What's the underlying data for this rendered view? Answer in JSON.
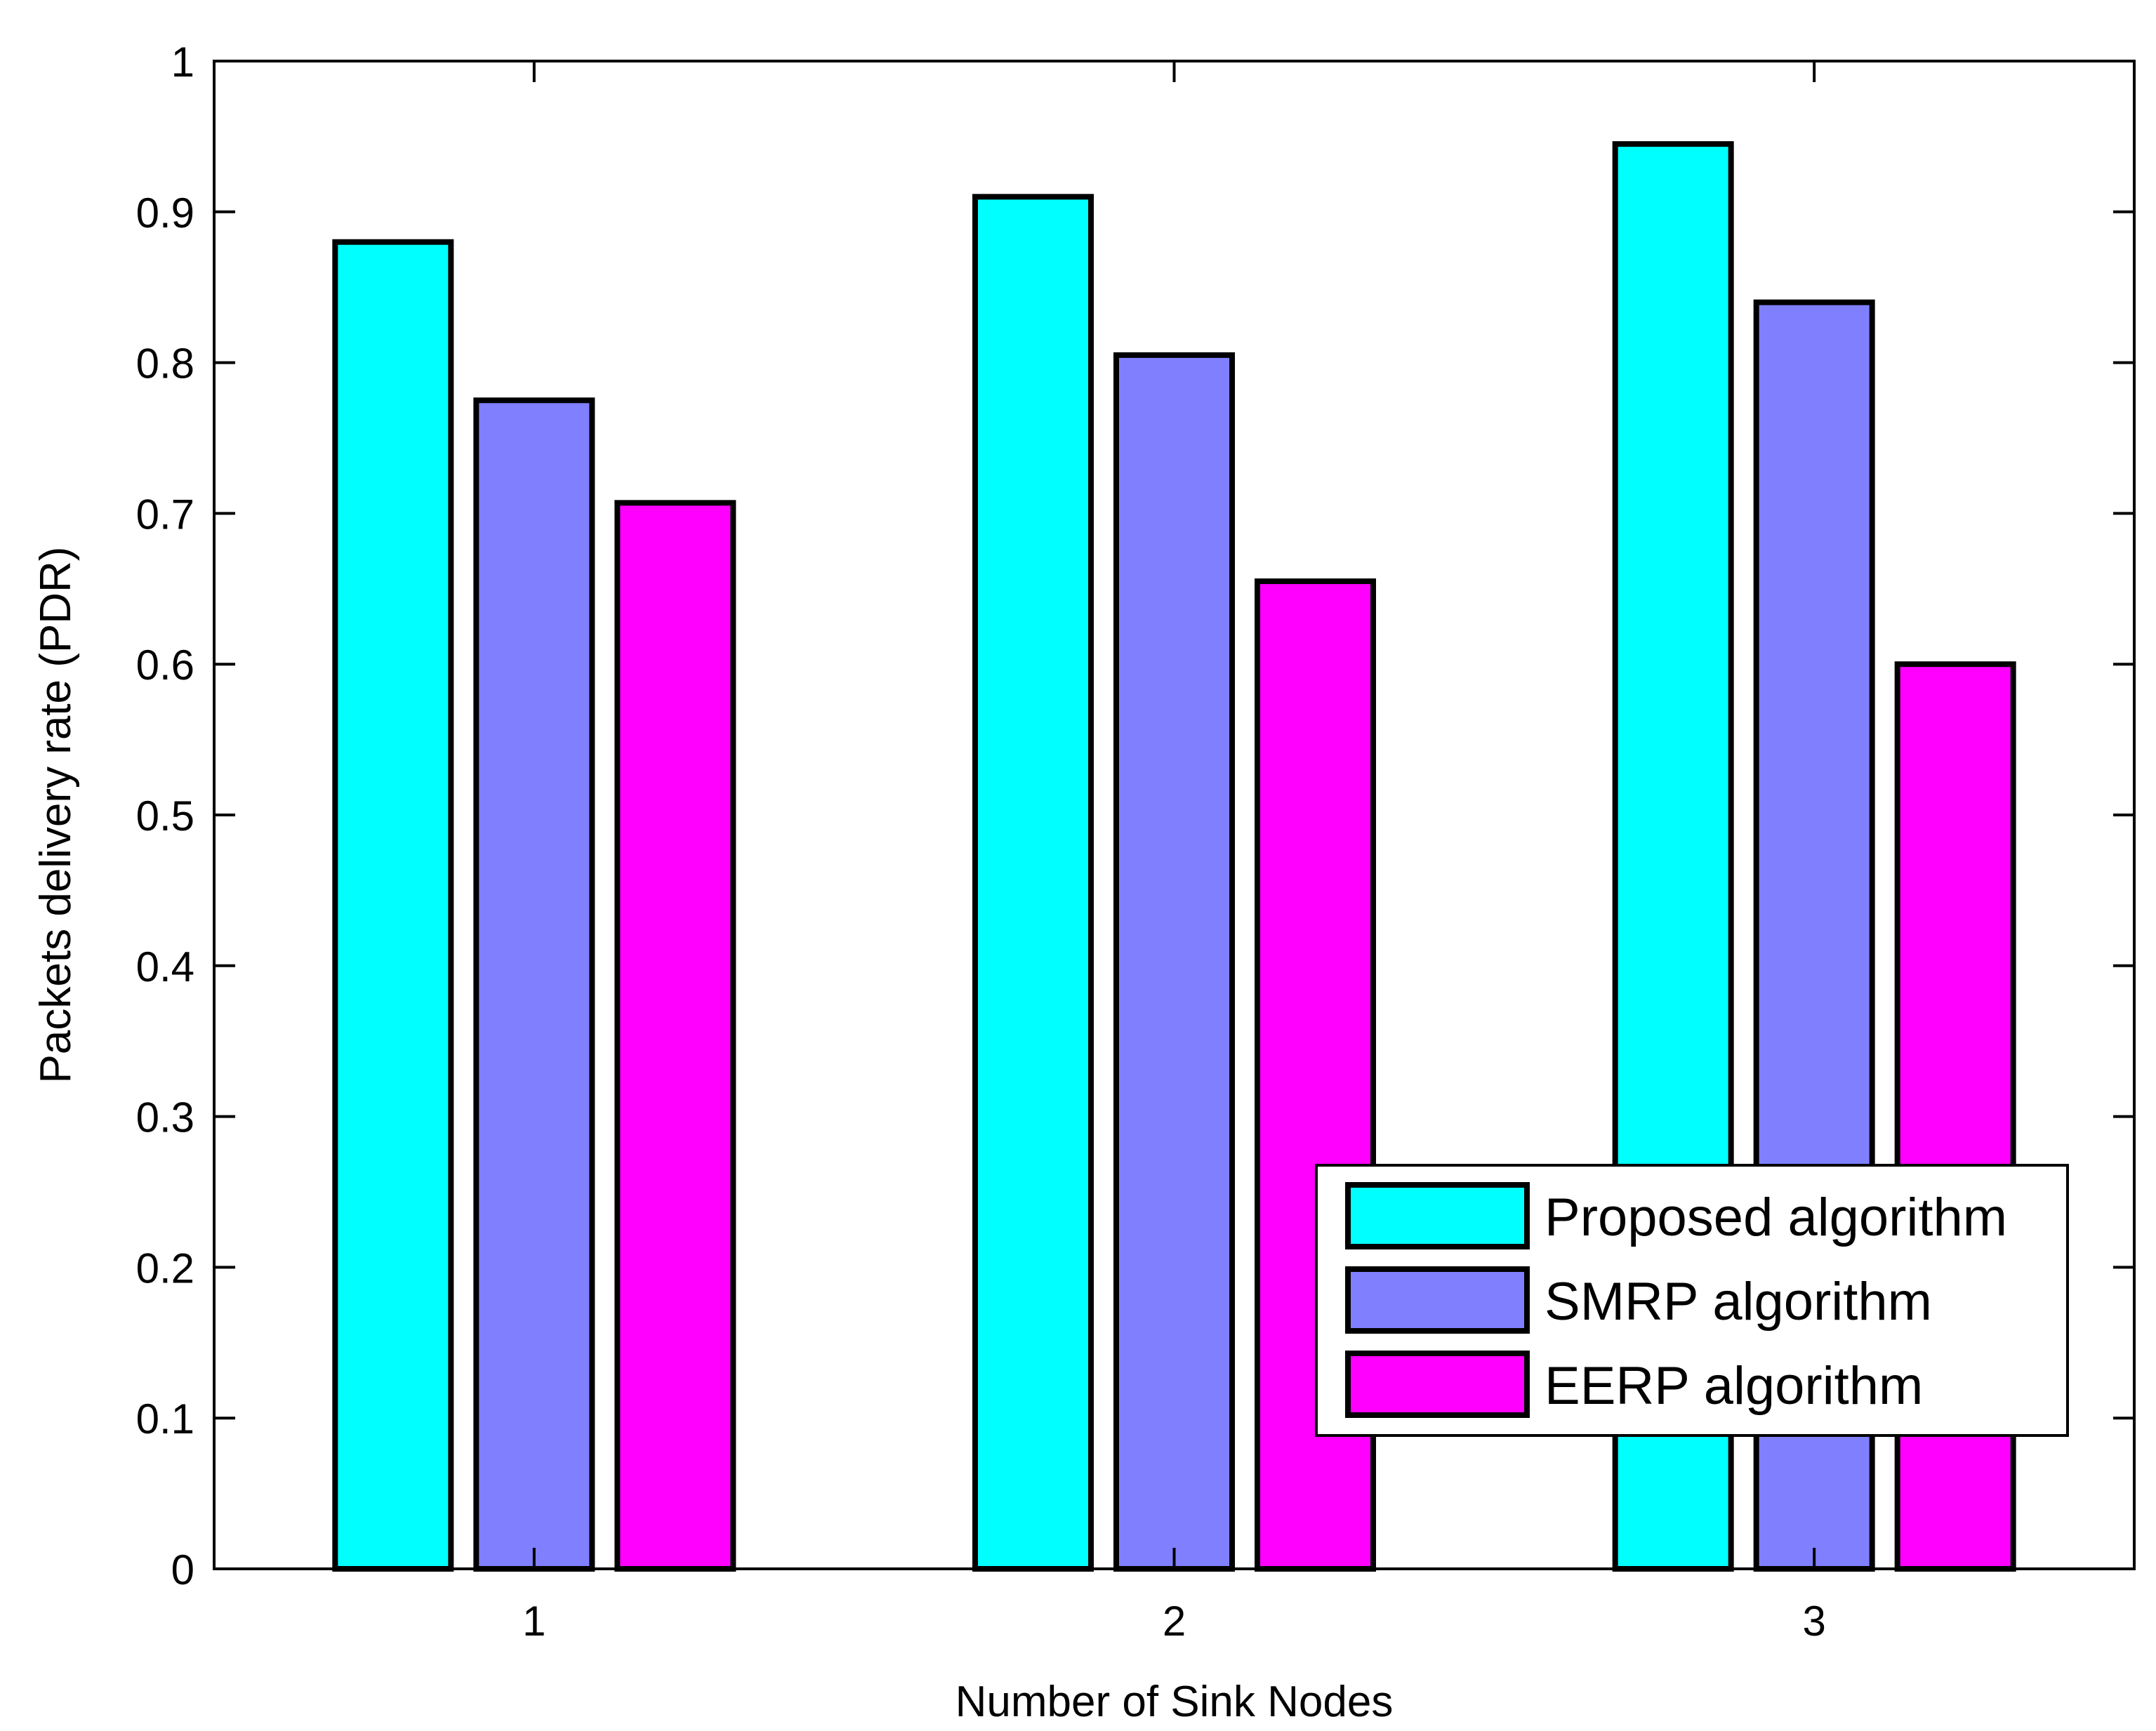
{
  "chart_data": {
    "type": "bar",
    "title": "",
    "xlabel": "Number of Sink Nodes",
    "ylabel": "Packets delivery rate (PDR)",
    "categories": [
      "1",
      "2",
      "3"
    ],
    "ylim": [
      0,
      1
    ],
    "yticks": [
      0,
      0.1,
      0.2,
      0.3,
      0.4,
      0.5,
      0.6,
      0.7,
      0.8,
      0.9,
      1
    ],
    "ytick_labels": [
      "0",
      "0.1",
      "0.2",
      "0.3",
      "0.4",
      "0.5",
      "0.6",
      "0.7",
      "0.8",
      "0.9",
      "1"
    ],
    "grid": false,
    "legend_position": "bottom-right",
    "series": [
      {
        "name": "Proposed algorithm",
        "color": "#00ffff",
        "values": [
          0.88,
          0.91,
          0.945
        ]
      },
      {
        "name": "SMRP algorithm",
        "color": "#8080ff",
        "values": [
          0.775,
          0.805,
          0.84
        ]
      },
      {
        "name": "EERP algorithm",
        "color": "#ff00ff",
        "values": [
          0.707,
          0.655,
          0.6
        ]
      }
    ]
  }
}
